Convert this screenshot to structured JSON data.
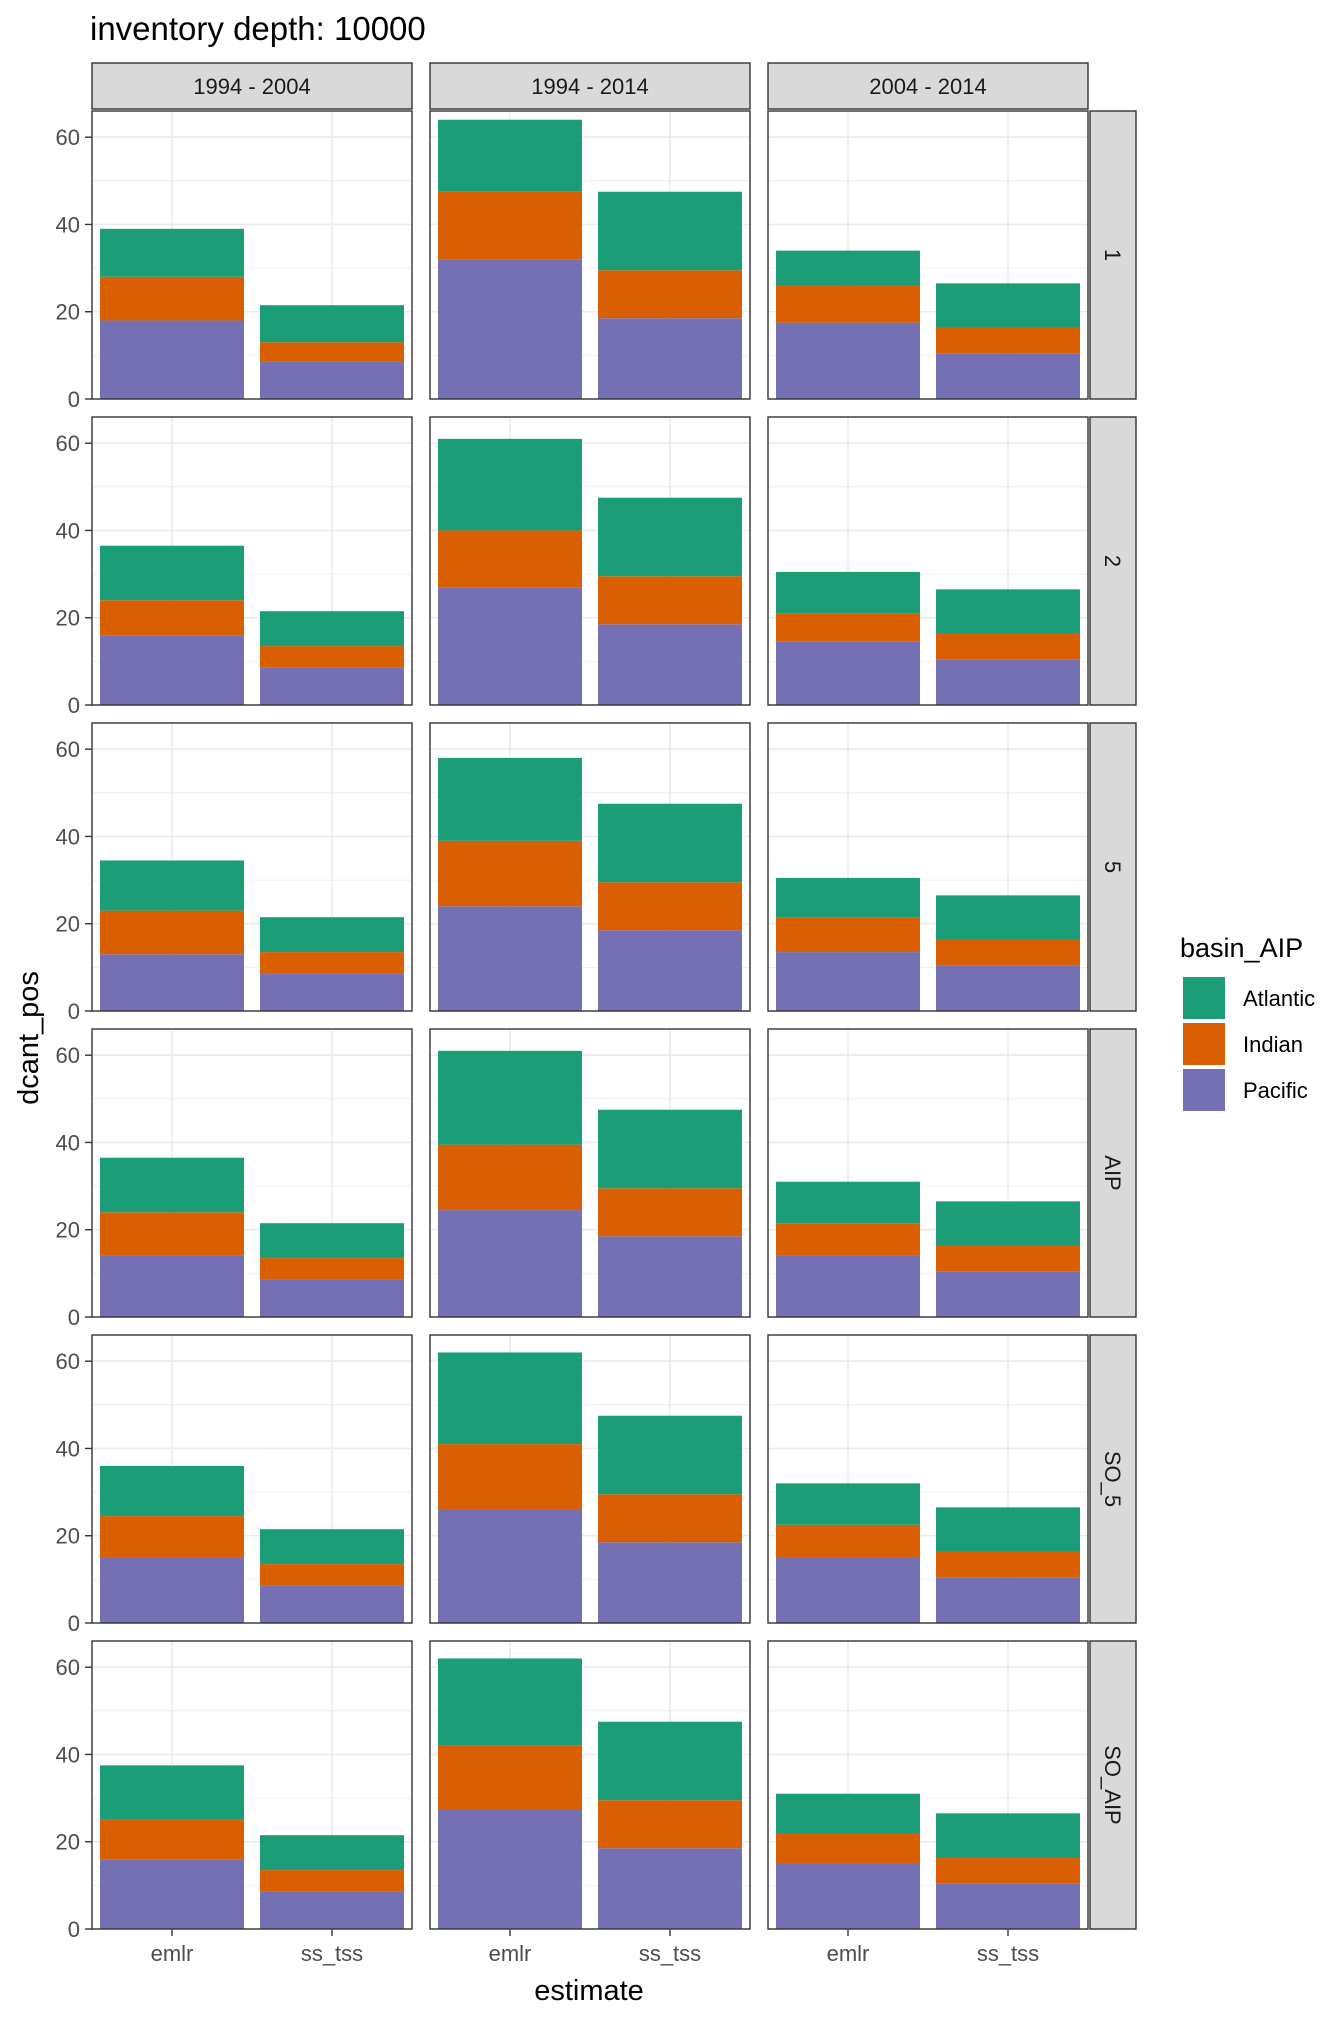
{
  "chart_data": {
    "type": "bar",
    "stacked": true,
    "title": "inventory depth: 10000",
    "xlabel": "estimate",
    "ylabel": "dcant_pos",
    "ylim": [
      0,
      66
    ],
    "yticks": [
      0,
      20,
      40,
      60
    ],
    "categories": [
      "emlr",
      "ss_tss"
    ],
    "columns": [
      "1994 - 2004",
      "1994 - 2014",
      "2004 - 2014"
    ],
    "rows": [
      "1",
      "2",
      "5",
      "AIP",
      "SO_5",
      "SO_AIP"
    ],
    "legend": {
      "title": "basin_AIP",
      "position": "right",
      "entries": [
        {
          "name": "Atlantic",
          "color": "#1B9E77"
        },
        {
          "name": "Indian",
          "color": "#D95F02"
        },
        {
          "name": "Pacific",
          "color": "#7570B3"
        }
      ]
    },
    "stack_order_bottom_to_top": [
      "Pacific",
      "Indian",
      "Atlantic"
    ],
    "panels": [
      {
        "row": "1",
        "col": "1994 - 2004",
        "bars": [
          {
            "x": "emlr",
            "Pacific": 18,
            "Indian": 10,
            "Atlantic": 11
          },
          {
            "x": "ss_tss",
            "Pacific": 8.5,
            "Indian": 4.5,
            "Atlantic": 8.5
          }
        ]
      },
      {
        "row": "1",
        "col": "1994 - 2014",
        "bars": [
          {
            "x": "emlr",
            "Pacific": 32,
            "Indian": 15.5,
            "Atlantic": 16.5
          },
          {
            "x": "ss_tss",
            "Pacific": 18.5,
            "Indian": 11,
            "Atlantic": 18
          }
        ]
      },
      {
        "row": "1",
        "col": "2004 - 2014",
        "bars": [
          {
            "x": "emlr",
            "Pacific": 17.5,
            "Indian": 8.5,
            "Atlantic": 8
          },
          {
            "x": "ss_tss",
            "Pacific": 10.5,
            "Indian": 6,
            "Atlantic": 10
          }
        ]
      },
      {
        "row": "2",
        "col": "1994 - 2004",
        "bars": [
          {
            "x": "emlr",
            "Pacific": 16,
            "Indian": 8,
            "Atlantic": 12.5
          },
          {
            "x": "ss_tss",
            "Pacific": 8.5,
            "Indian": 5,
            "Atlantic": 8
          }
        ]
      },
      {
        "row": "2",
        "col": "1994 - 2014",
        "bars": [
          {
            "x": "emlr",
            "Pacific": 27,
            "Indian": 13,
            "Atlantic": 21
          },
          {
            "x": "ss_tss",
            "Pacific": 18.5,
            "Indian": 11,
            "Atlantic": 18
          }
        ]
      },
      {
        "row": "2",
        "col": "2004 - 2014",
        "bars": [
          {
            "x": "emlr",
            "Pacific": 14.5,
            "Indian": 6.5,
            "Atlantic": 9.5
          },
          {
            "x": "ss_tss",
            "Pacific": 10.5,
            "Indian": 6,
            "Atlantic": 10
          }
        ]
      },
      {
        "row": "5",
        "col": "1994 - 2004",
        "bars": [
          {
            "x": "emlr",
            "Pacific": 13,
            "Indian": 10,
            "Atlantic": 11.5
          },
          {
            "x": "ss_tss",
            "Pacific": 8.5,
            "Indian": 5,
            "Atlantic": 8
          }
        ]
      },
      {
        "row": "5",
        "col": "1994 - 2014",
        "bars": [
          {
            "x": "emlr",
            "Pacific": 24,
            "Indian": 15,
            "Atlantic": 19
          },
          {
            "x": "ss_tss",
            "Pacific": 18.5,
            "Indian": 11,
            "Atlantic": 18
          }
        ]
      },
      {
        "row": "5",
        "col": "2004 - 2014",
        "bars": [
          {
            "x": "emlr",
            "Pacific": 13.5,
            "Indian": 8,
            "Atlantic": 9
          },
          {
            "x": "ss_tss",
            "Pacific": 10.5,
            "Indian": 6,
            "Atlantic": 10
          }
        ]
      },
      {
        "row": "AIP",
        "col": "1994 - 2004",
        "bars": [
          {
            "x": "emlr",
            "Pacific": 14,
            "Indian": 10,
            "Atlantic": 12.5
          },
          {
            "x": "ss_tss",
            "Pacific": 8.5,
            "Indian": 5,
            "Atlantic": 8
          }
        ]
      },
      {
        "row": "AIP",
        "col": "1994 - 2014",
        "bars": [
          {
            "x": "emlr",
            "Pacific": 24.5,
            "Indian": 15,
            "Atlantic": 21.5
          },
          {
            "x": "ss_tss",
            "Pacific": 18.5,
            "Indian": 11,
            "Atlantic": 18
          }
        ]
      },
      {
        "row": "AIP",
        "col": "2004 - 2014",
        "bars": [
          {
            "x": "emlr",
            "Pacific": 14,
            "Indian": 7.5,
            "Atlantic": 9.5
          },
          {
            "x": "ss_tss",
            "Pacific": 10.5,
            "Indian": 6,
            "Atlantic": 10
          }
        ]
      },
      {
        "row": "SO_5",
        "col": "1994 - 2004",
        "bars": [
          {
            "x": "emlr",
            "Pacific": 15,
            "Indian": 9.5,
            "Atlantic": 11.5
          },
          {
            "x": "ss_tss",
            "Pacific": 8.5,
            "Indian": 5,
            "Atlantic": 8
          }
        ]
      },
      {
        "row": "SO_5",
        "col": "1994 - 2014",
        "bars": [
          {
            "x": "emlr",
            "Pacific": 26,
            "Indian": 15,
            "Atlantic": 21
          },
          {
            "x": "ss_tss",
            "Pacific": 18.5,
            "Indian": 11,
            "Atlantic": 18
          }
        ]
      },
      {
        "row": "SO_5",
        "col": "2004 - 2014",
        "bars": [
          {
            "x": "emlr",
            "Pacific": 15,
            "Indian": 7.5,
            "Atlantic": 9.5
          },
          {
            "x": "ss_tss",
            "Pacific": 10.5,
            "Indian": 6,
            "Atlantic": 10
          }
        ]
      },
      {
        "row": "SO_AIP",
        "col": "1994 - 2004",
        "bars": [
          {
            "x": "emlr",
            "Pacific": 16,
            "Indian": 9,
            "Atlantic": 12.5
          },
          {
            "x": "ss_tss",
            "Pacific": 8.5,
            "Indian": 5,
            "Atlantic": 8
          }
        ]
      },
      {
        "row": "SO_AIP",
        "col": "1994 - 2014",
        "bars": [
          {
            "x": "emlr",
            "Pacific": 27.5,
            "Indian": 14.5,
            "Atlantic": 20
          },
          {
            "x": "ss_tss",
            "Pacific": 18.5,
            "Indian": 11,
            "Atlantic": 18
          }
        ]
      },
      {
        "row": "SO_AIP",
        "col": "2004 - 2014",
        "bars": [
          {
            "x": "emlr",
            "Pacific": 15,
            "Indian": 7,
            "Atlantic": 9
          },
          {
            "x": "ss_tss",
            "Pacific": 10.5,
            "Indian": 6,
            "Atlantic": 10
          }
        ]
      }
    ]
  }
}
